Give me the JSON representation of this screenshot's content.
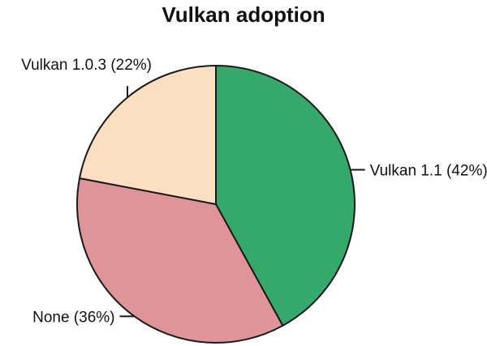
{
  "chart_data": {
    "type": "pie",
    "title": "Vulkan adoption",
    "slices": [
      {
        "name": "Vulkan 1.1",
        "value": 42,
        "label": "Vulkan 1.1 (42%)",
        "color": "#35a86b"
      },
      {
        "name": "None",
        "value": 36,
        "label": "None (36%)",
        "color": "#de9498"
      },
      {
        "name": "Vulkan 1.0.3",
        "value": 22,
        "label": "Vulkan 1.0.3 (22%)",
        "color": "#fcdfc0"
      }
    ],
    "start": "12 o'clock",
    "direction": "clockwise",
    "legend": "none (direct labels)"
  }
}
